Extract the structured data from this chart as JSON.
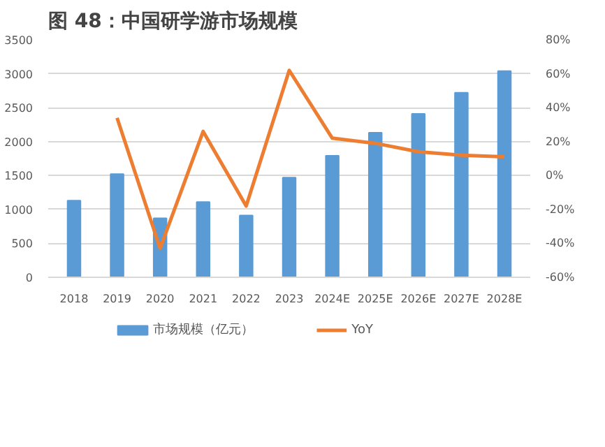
{
  "chart_data": {
    "type": "bar",
    "title": "图 48：中国研学游市场规模",
    "categories": [
      "2018",
      "2019",
      "2020",
      "2021",
      "2022",
      "2023",
      "2024E",
      "2025E",
      "2026E",
      "2027E",
      "2028E"
    ],
    "series": [
      {
        "name": "市场规模（亿元）",
        "color": "#5b9bd5",
        "values": [
          1130,
          1520,
          870,
          1110,
          910,
          1470,
          1790,
          2130,
          2410,
          2720,
          3040
        ]
      },
      {
        "name": "YoY",
        "type": "line",
        "axis": "y2",
        "color": "#ed7d31",
        "values": [
          null,
          34,
          -43,
          26,
          -18,
          62,
          22,
          19,
          14,
          12,
          11
        ]
      }
    ],
    "ylim": [
      0,
      3500
    ],
    "yticks": [
      0,
      500,
      1000,
      1500,
      2000,
      2500,
      3000,
      3500
    ],
    "y2lim": [
      -60,
      80
    ],
    "y2ticks": [
      {
        "value": -60,
        "label": "-60%"
      },
      {
        "value": -40,
        "label": "-40%"
      },
      {
        "value": -20,
        "label": "-20%"
      },
      {
        "value": 0,
        "label": "0%"
      },
      {
        "value": 20,
        "label": "20%"
      },
      {
        "value": 40,
        "label": "40%"
      },
      {
        "value": 60,
        "label": "60%"
      },
      {
        "value": 80,
        "label": "80%"
      }
    ],
    "grid": "y",
    "legend": "bottom"
  }
}
